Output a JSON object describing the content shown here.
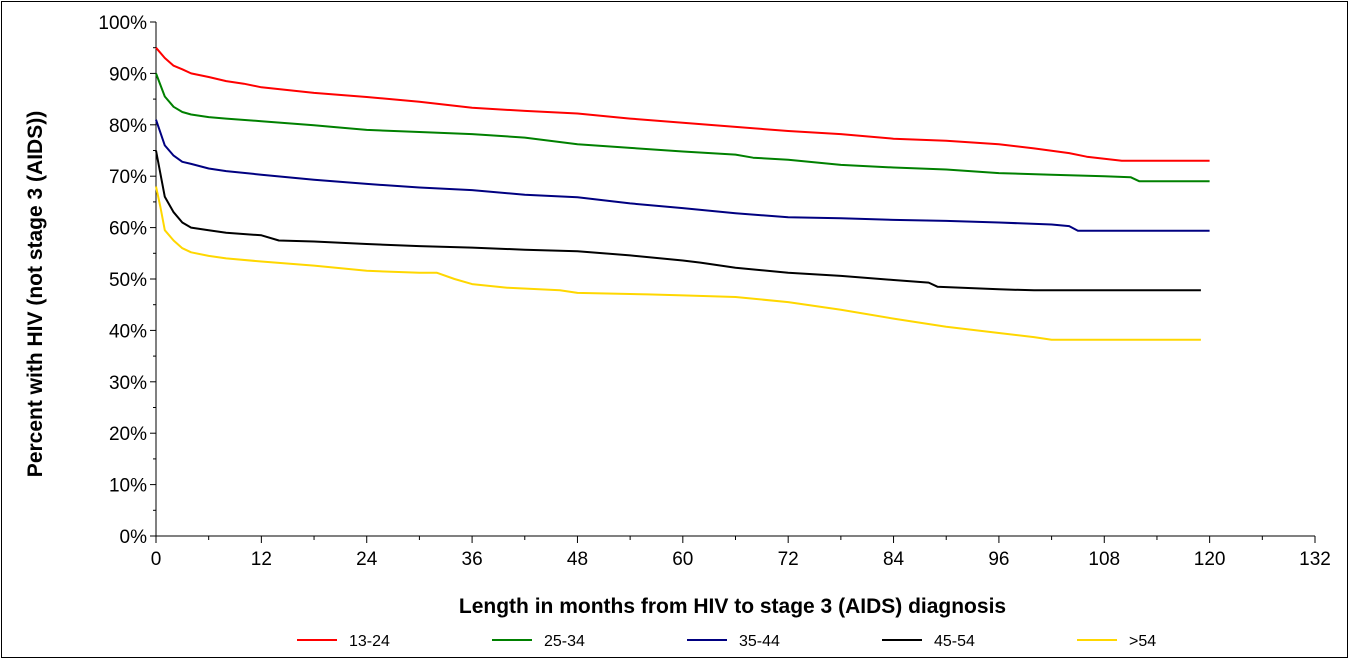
{
  "chart_data": {
    "type": "line",
    "title": "",
    "xlabel": "Length in months from HIV to stage 3 (AIDS) diagnosis",
    "ylabel": "Percent with HIV (not stage 3 (AIDS))",
    "xlim": [
      0,
      132
    ],
    "ylim": [
      0,
      100
    ],
    "x_ticks": [
      0,
      12,
      24,
      36,
      48,
      60,
      72,
      84,
      96,
      108,
      120,
      132
    ],
    "x_tick_labels": [
      "0",
      "12",
      "24",
      "36",
      "48",
      "60",
      "72",
      "84",
      "96",
      "108",
      "120",
      "132"
    ],
    "y_ticks": [
      0,
      10,
      20,
      30,
      40,
      50,
      60,
      70,
      80,
      90,
      100
    ],
    "y_tick_labels": [
      "0%",
      "10%",
      "20%",
      "30%",
      "40%",
      "50%",
      "60%",
      "70%",
      "80%",
      "90%",
      "100%"
    ],
    "grid": false,
    "legend_position": "bottom",
    "series": [
      {
        "name": "13-24",
        "color": "#ff0000",
        "points": [
          [
            0,
            95
          ],
          [
            1,
            93
          ],
          [
            2,
            91.5
          ],
          [
            3,
            90.8
          ],
          [
            4,
            90
          ],
          [
            6,
            89.3
          ],
          [
            8,
            88.5
          ],
          [
            10,
            88
          ],
          [
            12,
            87.3
          ],
          [
            18,
            86.2
          ],
          [
            24,
            85.4
          ],
          [
            30,
            84.5
          ],
          [
            36,
            83.3
          ],
          [
            42,
            82.7
          ],
          [
            48,
            82.2
          ],
          [
            54,
            81.2
          ],
          [
            60,
            80.4
          ],
          [
            66,
            79.6
          ],
          [
            72,
            78.8
          ],
          [
            78,
            78.2
          ],
          [
            84,
            77.3
          ],
          [
            90,
            76.9
          ],
          [
            96,
            76.2
          ],
          [
            100,
            75.4
          ],
          [
            104,
            74.5
          ],
          [
            106,
            73.8
          ],
          [
            110,
            73
          ],
          [
            120,
            73
          ]
        ]
      },
      {
        "name": "25-34",
        "color": "#008000",
        "points": [
          [
            0,
            90
          ],
          [
            1,
            85.5
          ],
          [
            2,
            83.5
          ],
          [
            3,
            82.5
          ],
          [
            4,
            82
          ],
          [
            6,
            81.5
          ],
          [
            8,
            81.2
          ],
          [
            12,
            80.7
          ],
          [
            18,
            79.9
          ],
          [
            24,
            79
          ],
          [
            30,
            78.6
          ],
          [
            36,
            78.2
          ],
          [
            42,
            77.5
          ],
          [
            48,
            76.2
          ],
          [
            54,
            75.5
          ],
          [
            60,
            74.8
          ],
          [
            66,
            74.2
          ],
          [
            68,
            73.6
          ],
          [
            72,
            73.2
          ],
          [
            78,
            72.2
          ],
          [
            84,
            71.7
          ],
          [
            90,
            71.3
          ],
          [
            96,
            70.6
          ],
          [
            102,
            70.3
          ],
          [
            108,
            70
          ],
          [
            111,
            69.8
          ],
          [
            112,
            69
          ],
          [
            120,
            69
          ]
        ]
      },
      {
        "name": "35-44",
        "color": "#000080",
        "points": [
          [
            0,
            81
          ],
          [
            1,
            76
          ],
          [
            2,
            74
          ],
          [
            3,
            72.8
          ],
          [
            4,
            72.4
          ],
          [
            6,
            71.5
          ],
          [
            8,
            71
          ],
          [
            12,
            70.3
          ],
          [
            18,
            69.3
          ],
          [
            24,
            68.5
          ],
          [
            30,
            67.8
          ],
          [
            36,
            67.3
          ],
          [
            42,
            66.4
          ],
          [
            48,
            65.9
          ],
          [
            54,
            64.7
          ],
          [
            60,
            63.8
          ],
          [
            66,
            62.8
          ],
          [
            72,
            62
          ],
          [
            78,
            61.8
          ],
          [
            84,
            61.5
          ],
          [
            90,
            61.3
          ],
          [
            96,
            61
          ],
          [
            102,
            60.6
          ],
          [
            104,
            60.3
          ],
          [
            105,
            59.4
          ],
          [
            120,
            59.4
          ]
        ]
      },
      {
        "name": "45-54",
        "color": "#000000",
        "points": [
          [
            0,
            75
          ],
          [
            1,
            66
          ],
          [
            2,
            63
          ],
          [
            3,
            61
          ],
          [
            4,
            60
          ],
          [
            6,
            59.5
          ],
          [
            8,
            59
          ],
          [
            12,
            58.5
          ],
          [
            14,
            57.5
          ],
          [
            18,
            57.3
          ],
          [
            24,
            56.8
          ],
          [
            30,
            56.4
          ],
          [
            36,
            56.1
          ],
          [
            42,
            55.7
          ],
          [
            48,
            55.4
          ],
          [
            54,
            54.6
          ],
          [
            60,
            53.6
          ],
          [
            62,
            53.2
          ],
          [
            66,
            52.2
          ],
          [
            72,
            51.2
          ],
          [
            78,
            50.6
          ],
          [
            84,
            49.8
          ],
          [
            88,
            49.3
          ],
          [
            89,
            48.5
          ],
          [
            96,
            48
          ],
          [
            100,
            47.8
          ],
          [
            110,
            47.8
          ],
          [
            119,
            47.8
          ]
        ]
      },
      {
        "name": ">54",
        "color": "#ffd700",
        "points": [
          [
            0,
            68
          ],
          [
            0.5,
            64
          ],
          [
            1,
            59.5
          ],
          [
            2,
            57.5
          ],
          [
            3,
            56
          ],
          [
            4,
            55.2
          ],
          [
            6,
            54.5
          ],
          [
            8,
            54
          ],
          [
            12,
            53.4
          ],
          [
            18,
            52.6
          ],
          [
            24,
            51.6
          ],
          [
            30,
            51.2
          ],
          [
            32,
            51.2
          ],
          [
            34,
            50
          ],
          [
            36,
            49
          ],
          [
            40,
            48.3
          ],
          [
            46,
            47.8
          ],
          [
            48,
            47.3
          ],
          [
            56,
            47
          ],
          [
            60,
            46.8
          ],
          [
            66,
            46.5
          ],
          [
            72,
            45.5
          ],
          [
            78,
            44
          ],
          [
            84,
            42.3
          ],
          [
            90,
            40.7
          ],
          [
            96,
            39.5
          ],
          [
            100,
            38.7
          ],
          [
            102,
            38.2
          ],
          [
            119,
            38.2
          ]
        ]
      }
    ]
  }
}
